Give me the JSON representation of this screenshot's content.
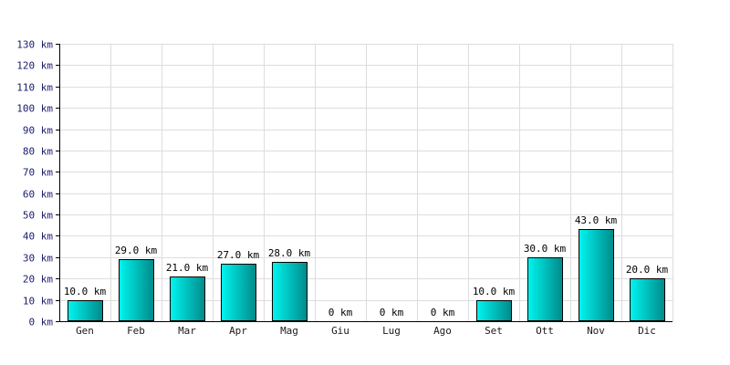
{
  "chart_data": {
    "type": "bar",
    "title": "",
    "xlabel": "",
    "ylabel": "",
    "unit": "km",
    "categories": [
      "Gen",
      "Feb",
      "Mar",
      "Apr",
      "Mag",
      "Giu",
      "Lug",
      "Ago",
      "Set",
      "Ott",
      "Nov",
      "Dic"
    ],
    "values": [
      10.0,
      29.0,
      21.0,
      27.0,
      28.0,
      0,
      0,
      0,
      10.0,
      30.0,
      43.0,
      20.0
    ],
    "data_labels": [
      "10.0 km",
      "29.0 km",
      "21.0 km",
      "27.0 km",
      "28.0 km",
      "0 km",
      "0 km",
      "0 km",
      "10.0 km",
      "30.0 km",
      "43.0 km",
      "20.0 km"
    ],
    "y_ticks": [
      0,
      10,
      20,
      30,
      40,
      50,
      60,
      70,
      80,
      90,
      100,
      110,
      120,
      130
    ],
    "y_tick_labels": [
      "0 km",
      "10 km",
      "20 km",
      "30 km",
      "40 km",
      "50 km",
      "60 km",
      "70 km",
      "80 km",
      "90 km",
      "100 km",
      "110 km",
      "120 km",
      "130 km"
    ],
    "ylim": [
      0,
      130
    ],
    "grid": true,
    "legend": "none",
    "colors": {
      "bar_top": "#00f5f0",
      "bar_bottom": "#008a8a",
      "bar_edge": "#000000",
      "grid": "#dddddd",
      "axis": "#000000"
    }
  }
}
